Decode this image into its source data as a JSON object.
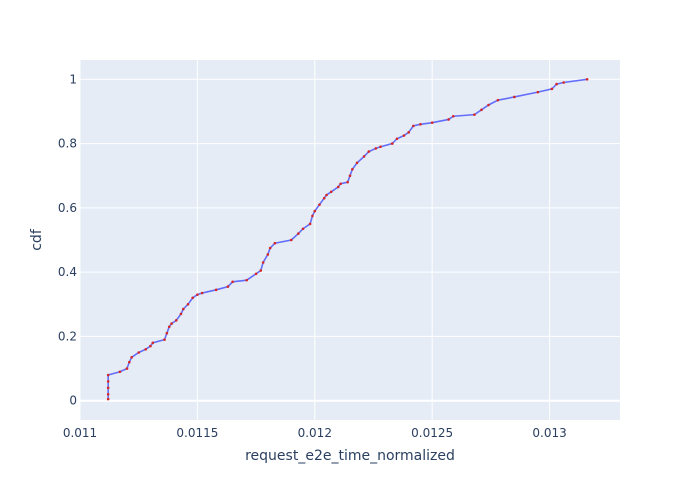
{
  "chart_data": {
    "type": "line",
    "title": "",
    "xlabel": "request_e2e_time_normalized",
    "ylabel": "cdf",
    "xlim": [
      0.011,
      0.0133
    ],
    "ylim": [
      -0.06,
      1.06
    ],
    "x_ticks": [
      0.011,
      0.0115,
      0.012,
      0.0125,
      0.013
    ],
    "x_tick_labels": [
      "0.011",
      "0.0115",
      "0.012",
      "0.0125",
      "0.013"
    ],
    "y_ticks": [
      0,
      0.2,
      0.4,
      0.6,
      0.8,
      1
    ],
    "y_tick_labels": [
      "0",
      "0.2",
      "0.4",
      "0.6",
      "0.8",
      "1"
    ],
    "grid": true,
    "colors": {
      "plot_background": "#e5ecf6",
      "grid": "#ffffff",
      "line": "#636efa",
      "markers": "#d62728",
      "text": "#2a3f5f"
    },
    "series": [
      {
        "x": [
          0.01112,
          0.01112,
          0.01112,
          0.01112,
          0.01112,
          0.01117,
          0.0112,
          0.01121,
          0.01122,
          0.01125,
          0.01128,
          0.0113,
          0.01131,
          0.01136,
          0.01137,
          0.01138,
          0.01139,
          0.01141,
          0.01143,
          0.01144,
          0.01146,
          0.01148,
          0.0115,
          0.01152,
          0.01158,
          0.01163,
          0.01165,
          0.01171,
          0.01175,
          0.01177,
          0.01178,
          0.0118,
          0.01181,
          0.01183,
          0.0119,
          0.01193,
          0.01195,
          0.01198,
          0.01199,
          0.012,
          0.01202,
          0.01204,
          0.01205,
          0.01207,
          0.0121,
          0.01211,
          0.01214,
          0.01215,
          0.01216,
          0.01218,
          0.01221,
          0.01223,
          0.01226,
          0.01228,
          0.01233,
          0.01235,
          0.01238,
          0.0124,
          0.01242,
          0.01245,
          0.0125,
          0.01257,
          0.01259,
          0.01268,
          0.01271,
          0.01274,
          0.01278,
          0.01285,
          0.01295,
          0.01301,
          0.01303,
          0.01306,
          0.01316
        ],
        "y": [
          0.005,
          0.02,
          0.04,
          0.06,
          0.08,
          0.09,
          0.1,
          0.12,
          0.135,
          0.15,
          0.16,
          0.17,
          0.18,
          0.19,
          0.21,
          0.23,
          0.24,
          0.25,
          0.27,
          0.285,
          0.3,
          0.32,
          0.33,
          0.335,
          0.345,
          0.355,
          0.37,
          0.375,
          0.395,
          0.405,
          0.43,
          0.455,
          0.475,
          0.49,
          0.5,
          0.52,
          0.535,
          0.55,
          0.575,
          0.59,
          0.61,
          0.63,
          0.64,
          0.65,
          0.665,
          0.675,
          0.68,
          0.7,
          0.72,
          0.74,
          0.76,
          0.775,
          0.785,
          0.79,
          0.8,
          0.815,
          0.825,
          0.835,
          0.855,
          0.86,
          0.865,
          0.875,
          0.885,
          0.89,
          0.905,
          0.92,
          0.935,
          0.945,
          0.96,
          0.97,
          0.985,
          0.99,
          1.0
        ]
      }
    ]
  }
}
